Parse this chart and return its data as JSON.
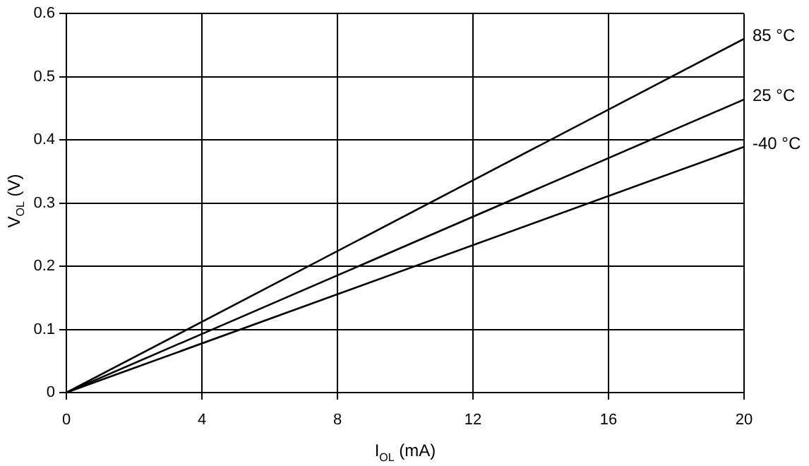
{
  "chart_data": {
    "type": "line",
    "xlabel": "I$_{OL}$ (mA)",
    "ylabel": "V$_{OL}$ (V)",
    "x": [
      0,
      20
    ],
    "series": [
      {
        "name": "85 °C",
        "color": "#000000",
        "values": [
          0,
          0.56
        ]
      },
      {
        "name": "25 °C",
        "color": "#000000",
        "values": [
          0,
          0.464
        ]
      },
      {
        "name": "-40 °C",
        "color": "#000000",
        "values": [
          0,
          0.389
        ]
      }
    ],
    "xlim": [
      0,
      20
    ],
    "xticks": [
      0,
      4,
      8,
      12,
      16,
      20
    ],
    "ylim": [
      0,
      0.6
    ],
    "yticks": [
      0,
      0.1,
      0.2,
      0.3,
      0.4,
      0.5,
      0.6
    ],
    "grid": true,
    "legend": false,
    "marker": "none",
    "line_style": "solid"
  }
}
